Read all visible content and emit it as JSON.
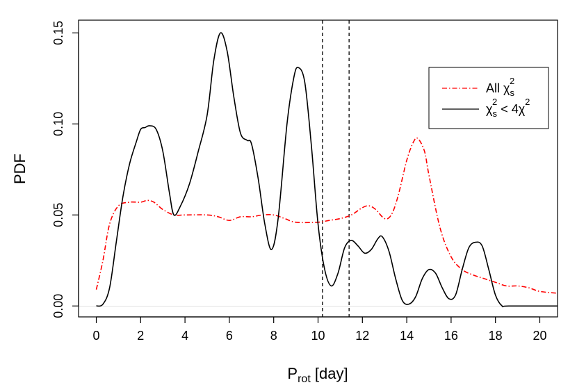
{
  "chart_data": {
    "type": "line",
    "xlabel": "P",
    "xlabel_sub": "rot",
    "xlabel_unit": " [day]",
    "ylabel": "PDF",
    "xlim": [
      -0.8,
      20.8
    ],
    "ylim": [
      -0.006,
      0.157
    ],
    "xticks": [
      0,
      2,
      4,
      6,
      8,
      10,
      12,
      14,
      16,
      18,
      20
    ],
    "xtick_labels": [
      "0",
      "2",
      "4",
      "6",
      "8",
      "10",
      "12",
      "14",
      "16",
      "18",
      "20"
    ],
    "yticks": [
      0.0,
      0.05,
      0.1,
      0.15
    ],
    "ytick_labels": [
      "0.00",
      "0.05",
      "0.10",
      "0.15"
    ],
    "vlines": [
      10.2,
      11.4
    ],
    "legend_position": "top-right",
    "legend": [
      {
        "base": "All χ",
        "sub": "s",
        "sup": "2",
        "tail": ""
      },
      {
        "base": "χ",
        "sub": "s",
        "sup": "2",
        "tail": " < 4χ",
        "tail_sup": "2"
      }
    ],
    "series": [
      {
        "color": "#ff0000",
        "dash": "dashdot",
        "points": [
          [
            0,
            0.009
          ],
          [
            0.3,
            0.025
          ],
          [
            0.6,
            0.045
          ],
          [
            1.0,
            0.055
          ],
          [
            1.5,
            0.057
          ],
          [
            2.0,
            0.057
          ],
          [
            2.3,
            0.058
          ],
          [
            2.6,
            0.057
          ],
          [
            3.0,
            0.053
          ],
          [
            3.5,
            0.05
          ],
          [
            4.0,
            0.05
          ],
          [
            5.0,
            0.05
          ],
          [
            5.5,
            0.049
          ],
          [
            6.0,
            0.047
          ],
          [
            6.5,
            0.049
          ],
          [
            7.0,
            0.049
          ],
          [
            7.5,
            0.05
          ],
          [
            8.0,
            0.05
          ],
          [
            8.5,
            0.048
          ],
          [
            9.0,
            0.046
          ],
          [
            10.0,
            0.046
          ],
          [
            10.5,
            0.047
          ],
          [
            11.0,
            0.048
          ],
          [
            11.5,
            0.05
          ],
          [
            12.0,
            0.054
          ],
          [
            12.3,
            0.055
          ],
          [
            12.6,
            0.053
          ],
          [
            13.0,
            0.048
          ],
          [
            13.3,
            0.05
          ],
          [
            13.6,
            0.06
          ],
          [
            14.0,
            0.08
          ],
          [
            14.3,
            0.09
          ],
          [
            14.5,
            0.092
          ],
          [
            14.8,
            0.085
          ],
          [
            15.0,
            0.072
          ],
          [
            15.5,
            0.043
          ],
          [
            16.0,
            0.027
          ],
          [
            16.5,
            0.02
          ],
          [
            17.0,
            0.017
          ],
          [
            17.5,
            0.015
          ],
          [
            18.0,
            0.013
          ],
          [
            18.5,
            0.011
          ],
          [
            19.0,
            0.011
          ],
          [
            19.5,
            0.01
          ],
          [
            20.0,
            0.008
          ],
          [
            20.8,
            0.007
          ]
        ]
      },
      {
        "color": "#000000",
        "dash": "solid",
        "points": [
          [
            0,
            0.0
          ],
          [
            0.3,
            0.001
          ],
          [
            0.6,
            0.01
          ],
          [
            0.9,
            0.035
          ],
          [
            1.2,
            0.06
          ],
          [
            1.5,
            0.078
          ],
          [
            1.8,
            0.09
          ],
          [
            2.0,
            0.097
          ],
          [
            2.2,
            0.098
          ],
          [
            2.4,
            0.099
          ],
          [
            2.7,
            0.097
          ],
          [
            3.0,
            0.085
          ],
          [
            3.3,
            0.062
          ],
          [
            3.5,
            0.05
          ],
          [
            3.8,
            0.055
          ],
          [
            4.2,
            0.067
          ],
          [
            4.6,
            0.085
          ],
          [
            5.0,
            0.105
          ],
          [
            5.3,
            0.135
          ],
          [
            5.6,
            0.15
          ],
          [
            5.9,
            0.14
          ],
          [
            6.2,
            0.115
          ],
          [
            6.5,
            0.095
          ],
          [
            6.8,
            0.091
          ],
          [
            7.0,
            0.089
          ],
          [
            7.3,
            0.07
          ],
          [
            7.6,
            0.045
          ],
          [
            7.9,
            0.031
          ],
          [
            8.2,
            0.048
          ],
          [
            8.6,
            0.1
          ],
          [
            8.9,
            0.125
          ],
          [
            9.1,
            0.131
          ],
          [
            9.4,
            0.123
          ],
          [
            9.7,
            0.088
          ],
          [
            10.0,
            0.045
          ],
          [
            10.3,
            0.02
          ],
          [
            10.6,
            0.011
          ],
          [
            10.9,
            0.018
          ],
          [
            11.2,
            0.032
          ],
          [
            11.5,
            0.036
          ],
          [
            11.8,
            0.033
          ],
          [
            12.1,
            0.029
          ],
          [
            12.4,
            0.031
          ],
          [
            12.7,
            0.037
          ],
          [
            12.9,
            0.038
          ],
          [
            13.2,
            0.03
          ],
          [
            13.5,
            0.015
          ],
          [
            13.8,
            0.003
          ],
          [
            14.1,
            0.001
          ],
          [
            14.4,
            0.005
          ],
          [
            14.7,
            0.015
          ],
          [
            15.0,
            0.02
          ],
          [
            15.3,
            0.018
          ],
          [
            15.6,
            0.01
          ],
          [
            15.9,
            0.004
          ],
          [
            16.2,
            0.006
          ],
          [
            16.5,
            0.02
          ],
          [
            16.8,
            0.032
          ],
          [
            17.1,
            0.035
          ],
          [
            17.4,
            0.033
          ],
          [
            17.7,
            0.02
          ],
          [
            18.0,
            0.006
          ],
          [
            18.3,
            0.0
          ],
          [
            18.6,
            0.0
          ],
          [
            20.8,
            0.0
          ]
        ]
      }
    ]
  }
}
